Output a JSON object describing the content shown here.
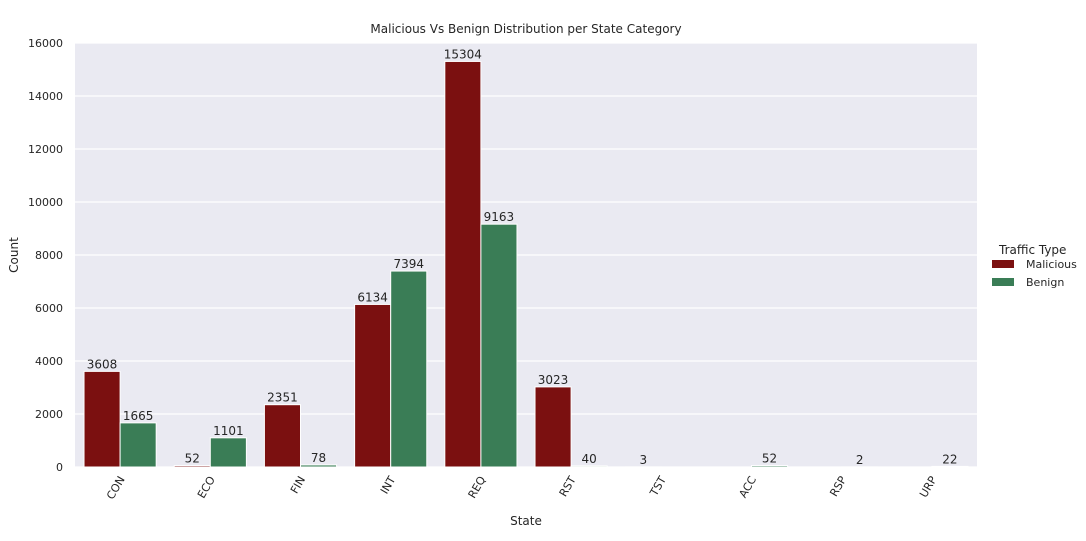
{
  "chart_data": {
    "type": "bar",
    "title": "Malicious Vs Benign Distribution per State Category",
    "xlabel": "State",
    "ylabel": "Count",
    "categories": [
      "CON",
      "ECO",
      "FIN",
      "INT",
      "REQ",
      "RST",
      "TST",
      "ACC",
      "RSP",
      "URP"
    ],
    "series": [
      {
        "name": "Malicious",
        "color": "#7b1010",
        "values": [
          3608,
          52,
          2351,
          6134,
          15304,
          3023,
          3,
          null,
          null,
          null
        ]
      },
      {
        "name": "Benign",
        "color": "#3a7d56",
        "values": [
          1665,
          1101,
          78,
          7394,
          9163,
          40,
          null,
          52,
          2,
          22
        ]
      }
    ],
    "data_labels": [
      {
        "category": "CON",
        "series": "Malicious",
        "text": "3608"
      },
      {
        "category": "CON",
        "series": "Benign",
        "text": "1665"
      },
      {
        "category": "ECO",
        "series": "Malicious",
        "text": "52"
      },
      {
        "category": "ECO",
        "series": "Benign",
        "text": "1101"
      },
      {
        "category": "FIN",
        "series": "Malicious",
        "text": "2351"
      },
      {
        "category": "FIN",
        "series": "Benign",
        "text": "78"
      },
      {
        "category": "INT",
        "series": "Malicious",
        "text": "6134"
      },
      {
        "category": "INT",
        "series": "Benign",
        "text": "7394"
      },
      {
        "category": "REQ",
        "series": "Malicious",
        "text": "15304"
      },
      {
        "category": "REQ",
        "series": "Benign",
        "text": "9163"
      },
      {
        "category": "RST",
        "series": "Malicious",
        "text": "3023"
      },
      {
        "category": "RST",
        "series": "Benign",
        "text": "40"
      },
      {
        "category": "TST",
        "series": "Malicious",
        "text": "3"
      },
      {
        "category": "ACC",
        "series": "Benign",
        "text": "52"
      },
      {
        "category": "RSP",
        "series": "Benign",
        "text": "2"
      },
      {
        "category": "URP",
        "series": "Benign",
        "text": "22"
      }
    ],
    "ylim": [
      0,
      16000
    ],
    "yticks": [
      0,
      2000,
      4000,
      6000,
      8000,
      10000,
      12000,
      14000,
      16000
    ],
    "grid": true,
    "legend": {
      "title": "Traffic Type",
      "placement": "right"
    },
    "background_color": "#eaeaf2"
  }
}
